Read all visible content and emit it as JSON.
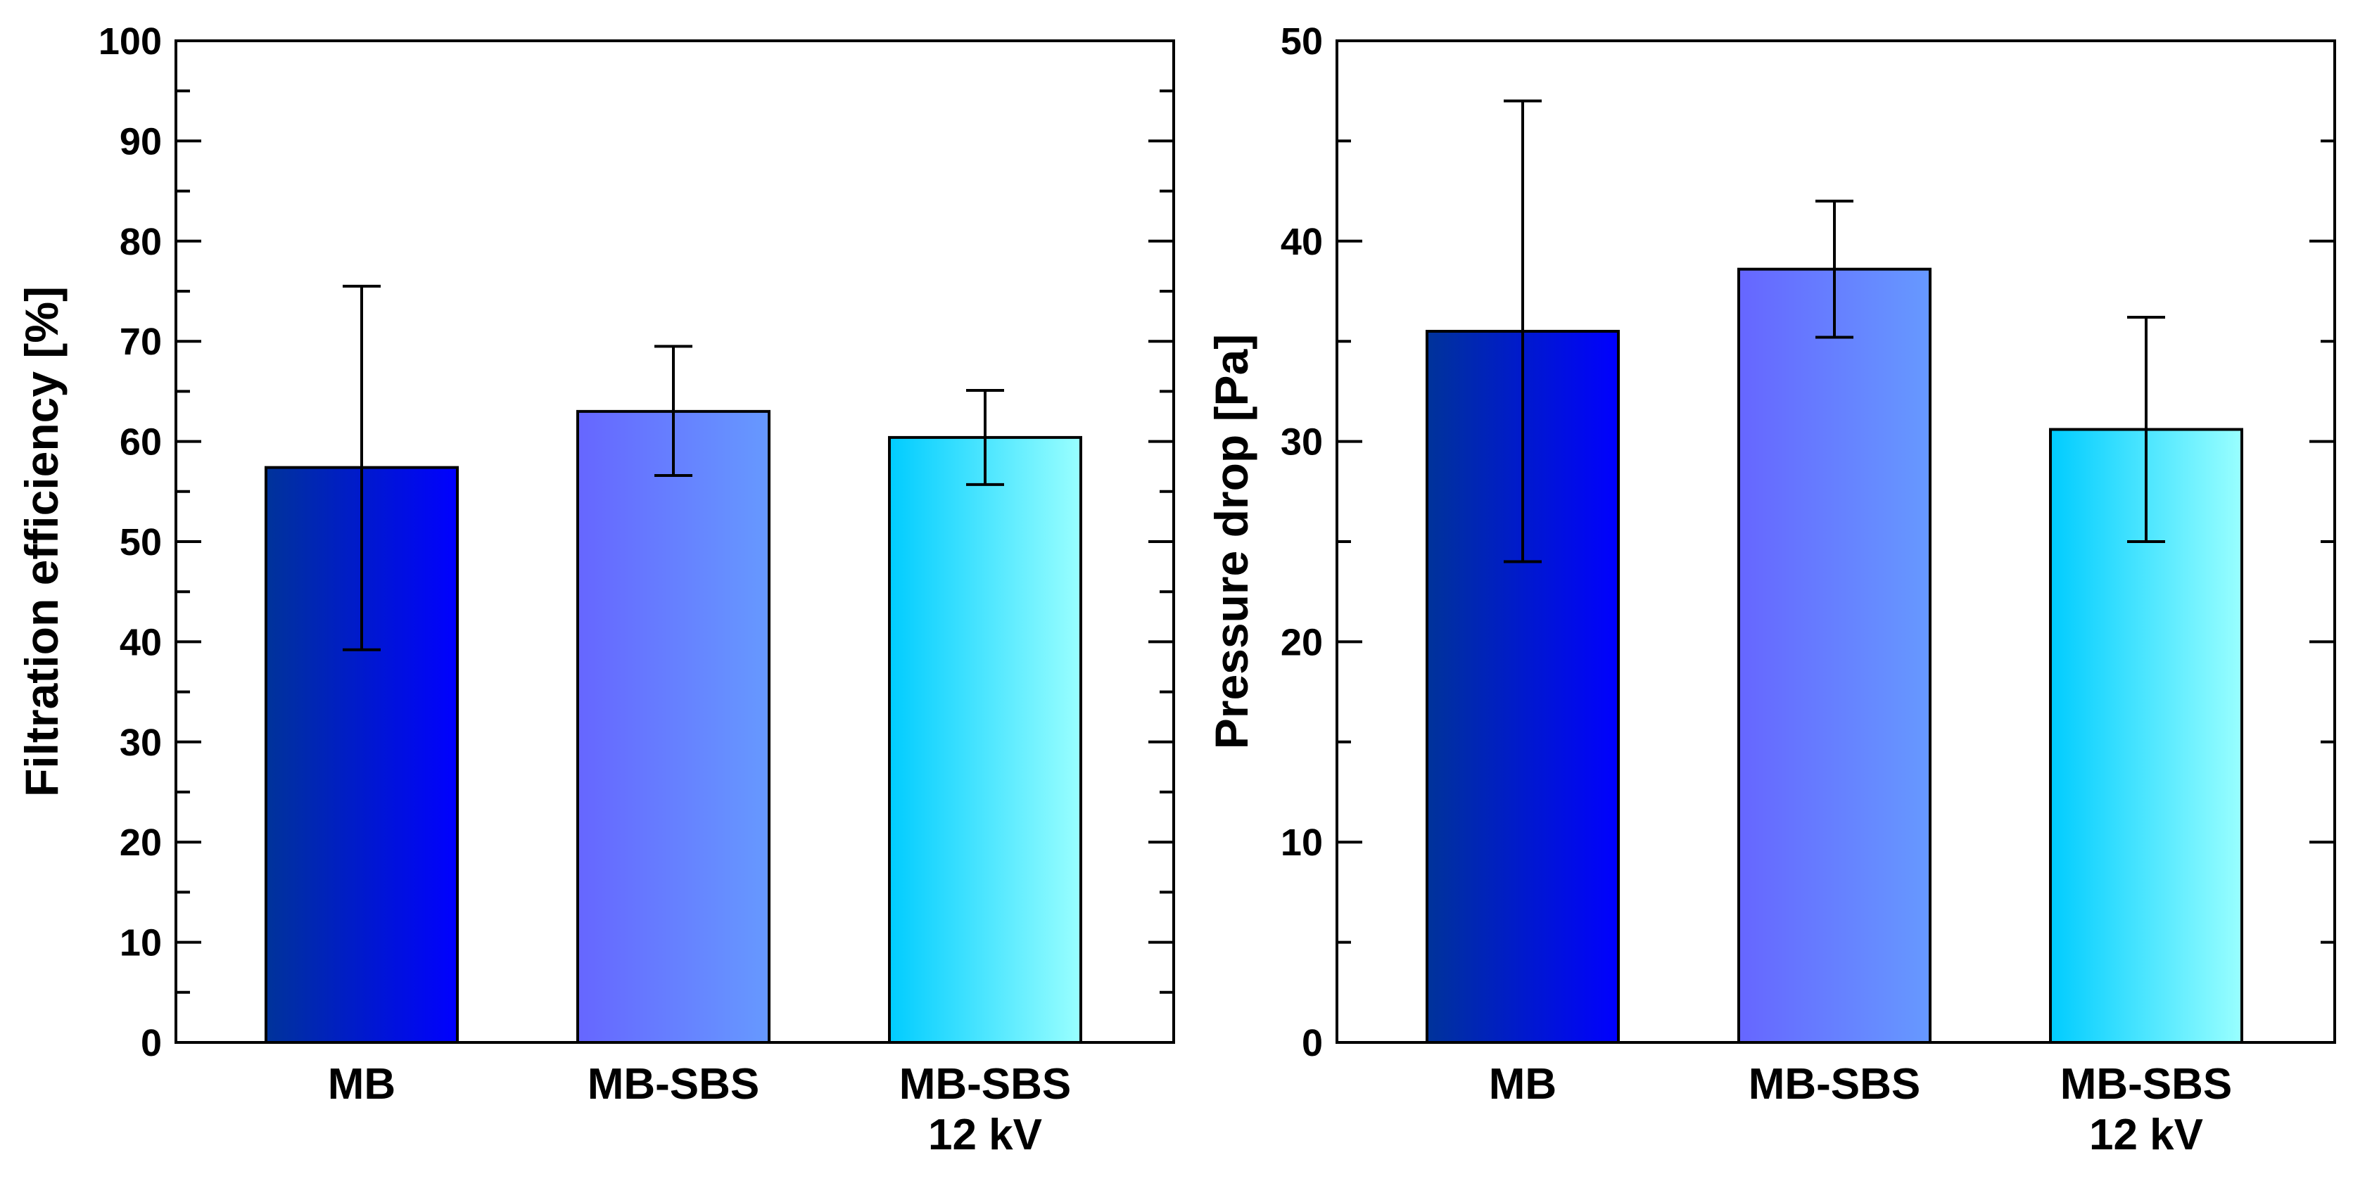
{
  "chart_data": [
    {
      "type": "bar",
      "title": "",
      "xlabel": "",
      "ylabel": "Filtration efficiency [%]",
      "ylim": [
        0,
        100
      ],
      "yticks": [
        0,
        10,
        20,
        30,
        40,
        50,
        60,
        70,
        80,
        90,
        100
      ],
      "ytick_labels": [
        "0",
        "10",
        "20",
        "30",
        "40",
        "50",
        "60",
        "70",
        "80",
        "90",
        "100"
      ],
      "minor_tick_step": 5,
      "categories": [
        {
          "line1": "MB",
          "line2": ""
        },
        {
          "line1": "MB-SBS",
          "line2": ""
        },
        {
          "line1": "MB-SBS",
          "line2": "12 kV"
        }
      ],
      "values": [
        57.4,
        63.0,
        60.4
      ],
      "error_low": [
        39.2,
        56.6,
        55.7
      ],
      "error_high": [
        75.5,
        69.5,
        65.1
      ],
      "colors": [
        [
          "#00339a",
          "#0000ff"
        ],
        [
          "#6666ff",
          "#6699ff"
        ],
        [
          "#00ccff",
          "#99ffff"
        ]
      ],
      "grid": false
    },
    {
      "type": "bar",
      "title": "",
      "xlabel": "",
      "ylabel": "Pressure drop [Pa]",
      "ylim": [
        0,
        50
      ],
      "yticks": [
        0,
        10,
        20,
        30,
        40,
        50
      ],
      "ytick_labels": [
        "0",
        "10",
        "20",
        "30",
        "40",
        "50"
      ],
      "minor_tick_step": 5,
      "categories": [
        {
          "line1": "MB",
          "line2": ""
        },
        {
          "line1": "MB-SBS",
          "line2": ""
        },
        {
          "line1": "MB-SBS",
          "line2": "12 kV"
        }
      ],
      "values": [
        35.5,
        38.6,
        30.6
      ],
      "error_low": [
        24.0,
        35.2,
        25.0
      ],
      "error_high": [
        47.0,
        42.0,
        36.2
      ],
      "colors": [
        [
          "#00339a",
          "#0000ff"
        ],
        [
          "#6666ff",
          "#6699ff"
        ],
        [
          "#00ccff",
          "#99ffff"
        ]
      ],
      "grid": false
    }
  ]
}
